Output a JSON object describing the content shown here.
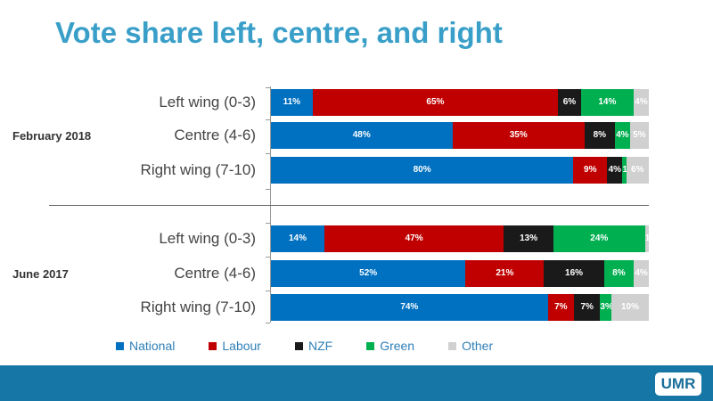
{
  "title": "Vote share left, centre, and right",
  "logo": "UMR",
  "chart_data": {
    "type": "bar",
    "orientation": "horizontal-stacked-100",
    "title": "Vote share left, centre, and right",
    "groups": [
      {
        "name": "February 2018",
        "categories": [
          "Left wing (0-3)",
          "Centre (4-6)",
          "Right wing (7-10)"
        ],
        "values": [
          [
            11,
            65,
            6,
            14,
            4
          ],
          [
            48,
            35,
            8,
            4,
            5
          ],
          [
            80,
            9,
            4,
            1,
            6
          ]
        ]
      },
      {
        "name": "June 2017",
        "categories": [
          "Left wing (0-3)",
          "Centre (4-6)",
          "Right wing (7-10)"
        ],
        "values": [
          [
            14,
            47,
            13,
            24,
            1
          ],
          [
            52,
            21,
            16,
            8,
            4
          ],
          [
            74,
            7,
            7,
            3,
            10
          ]
        ]
      }
    ],
    "series": [
      {
        "name": "National",
        "color": "#0070c0"
      },
      {
        "name": "Labour",
        "color": "#c00000"
      },
      {
        "name": "NZF",
        "color": "#1a1a1a"
      },
      {
        "name": "Green",
        "color": "#00b050"
      },
      {
        "name": "Other",
        "color": "#d0d0d0"
      }
    ],
    "legend": "bottom",
    "xlim": [
      0,
      100
    ]
  }
}
